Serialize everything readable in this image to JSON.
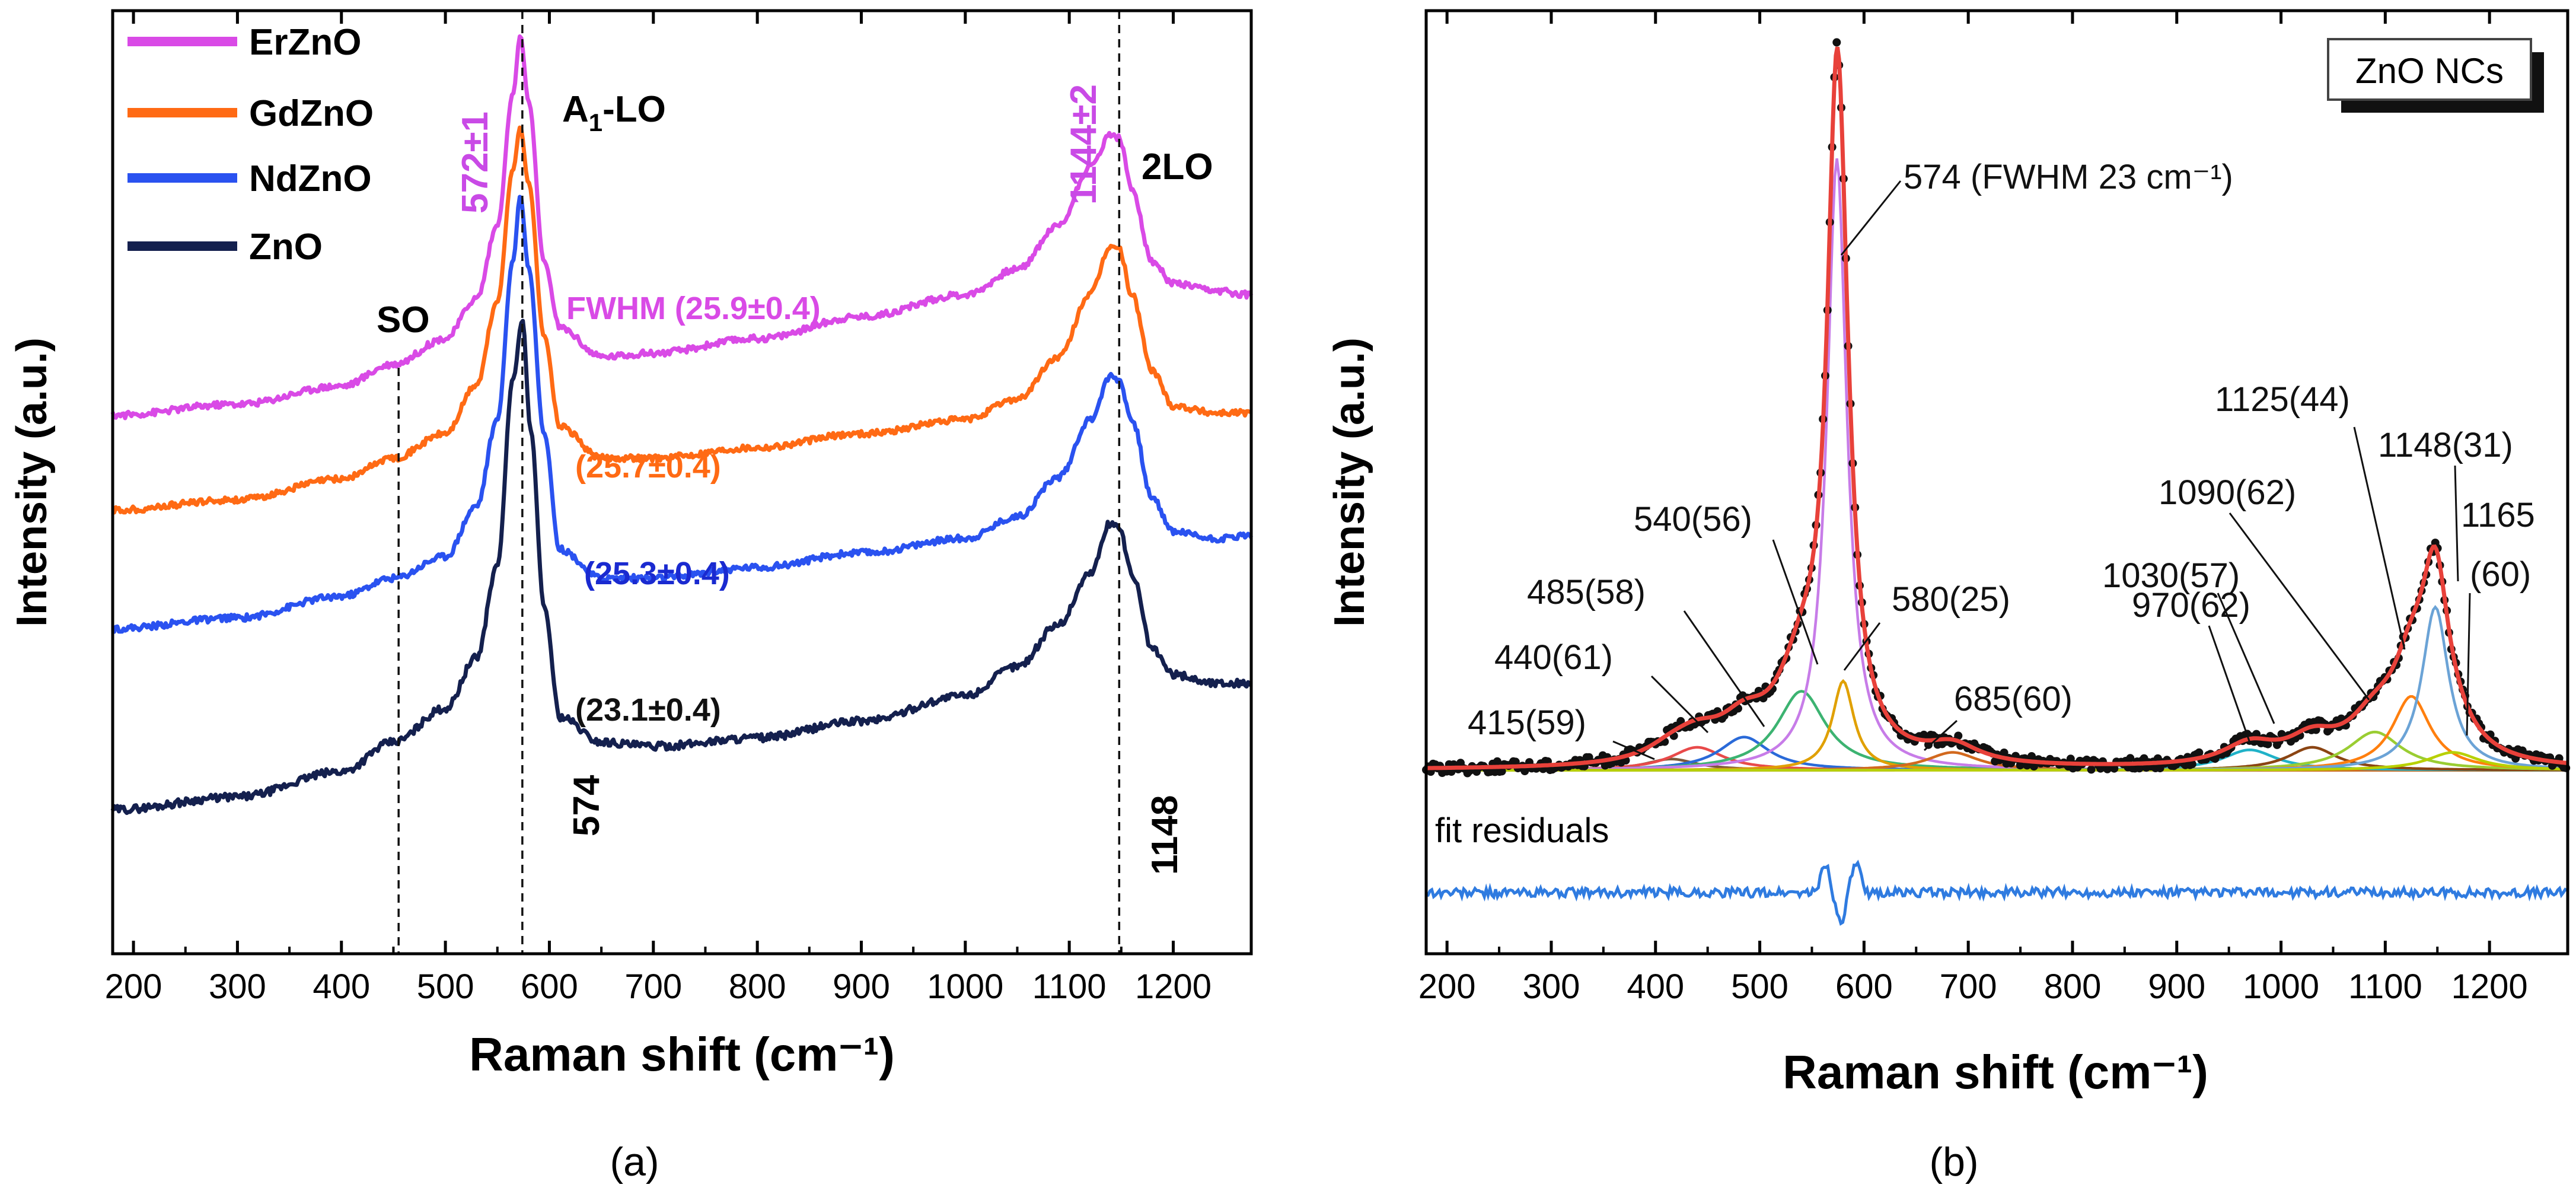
{
  "chart_data": [
    {
      "panel": "a",
      "type": "line",
      "xlabel": "Raman shift (cm⁻¹)",
      "ylabel": "Intensity (a.u.)",
      "xlim": [
        180,
        1275
      ],
      "ylim": [
        0,
        10
      ],
      "x_ticks": [
        200,
        300,
        400,
        500,
        600,
        700,
        800,
        900,
        1000,
        1100,
        1200
      ],
      "x_tick_labels": [
        "200",
        "300",
        "400",
        "500",
        "600",
        "700",
        "800",
        "900",
        "1000",
        "1100",
        "1200"
      ],
      "legend": {
        "position": "top-left",
        "entries": [
          {
            "name": "ErZnO",
            "color": "#d94ae6"
          },
          {
            "name": "GdZnO",
            "color": "#ff6a14"
          },
          {
            "name": "NdZnO",
            "color": "#2a52f0"
          },
          {
            "name": "ZnO",
            "color": "#14204e"
          }
        ]
      },
      "series": [
        {
          "name": "ErZnO",
          "color": "#d94ae6",
          "offset": 5.0,
          "points": [
            [
              180,
              0.4
            ],
            [
              300,
              0.55
            ],
            [
              400,
              0.8
            ],
            [
              450,
              1.1
            ],
            [
              500,
              1.45
            ],
            [
              530,
              2.0
            ],
            [
              550,
              3.0
            ],
            [
              565,
              4.8
            ],
            [
              572,
              5.6
            ],
            [
              580,
              4.7
            ],
            [
              595,
              2.5
            ],
            [
              610,
              1.6
            ],
            [
              650,
              1.2
            ],
            [
              700,
              1.25
            ],
            [
              800,
              1.45
            ],
            [
              900,
              1.75
            ],
            [
              1000,
              2.05
            ],
            [
              1050,
              2.4
            ],
            [
              1090,
              3.0
            ],
            [
              1120,
              3.8
            ],
            [
              1140,
              4.25
            ],
            [
              1148,
              4.2
            ],
            [
              1160,
              3.5
            ],
            [
              1180,
              2.5
            ],
            [
              1200,
              2.2
            ],
            [
              1240,
              2.1
            ],
            [
              1275,
              2.05
            ]
          ]
        },
        {
          "name": "GdZnO",
          "color": "#ff6a14",
          "offset": 3.55,
          "points": [
            [
              180,
              0.1
            ],
            [
              300,
              0.25
            ],
            [
              400,
              0.55
            ],
            [
              450,
              0.85
            ],
            [
              500,
              1.2
            ],
            [
              530,
              1.9
            ],
            [
              550,
              3.1
            ],
            [
              565,
              5.0
            ],
            [
              572,
              5.6
            ],
            [
              580,
              4.8
            ],
            [
              595,
              2.6
            ],
            [
              610,
              1.3
            ],
            [
              650,
              0.85
            ],
            [
              700,
              0.85
            ],
            [
              800,
              1.0
            ],
            [
              900,
              1.2
            ],
            [
              1000,
              1.4
            ],
            [
              1050,
              1.7
            ],
            [
              1090,
              2.3
            ],
            [
              1120,
              3.2
            ],
            [
              1140,
              3.9
            ],
            [
              1148,
              3.85
            ],
            [
              1160,
              3.2
            ],
            [
              1180,
              2.1
            ],
            [
              1200,
              1.6
            ],
            [
              1240,
              1.5
            ],
            [
              1275,
              1.5
            ]
          ]
        },
        {
          "name": "NdZnO",
          "color": "#2a52f0",
          "offset": 2.45,
          "points": [
            [
              180,
              0.1
            ],
            [
              300,
              0.25
            ],
            [
              400,
              0.55
            ],
            [
              450,
              0.8
            ],
            [
              500,
              1.1
            ],
            [
              530,
              1.8
            ],
            [
              550,
              3.0
            ],
            [
              565,
              5.2
            ],
            [
              572,
              6.1
            ],
            [
              580,
              5.1
            ],
            [
              595,
              2.8
            ],
            [
              610,
              1.2
            ],
            [
              650,
              0.8
            ],
            [
              700,
              0.8
            ],
            [
              800,
              0.95
            ],
            [
              900,
              1.15
            ],
            [
              1000,
              1.35
            ],
            [
              1050,
              1.65
            ],
            [
              1090,
              2.2
            ],
            [
              1120,
              3.0
            ],
            [
              1140,
              3.6
            ],
            [
              1148,
              3.55
            ],
            [
              1160,
              3.0
            ],
            [
              1180,
              1.9
            ],
            [
              1200,
              1.45
            ],
            [
              1240,
              1.35
            ],
            [
              1275,
              1.4
            ]
          ]
        },
        {
          "name": "ZnO",
          "color": "#14204e",
          "offset": 0.85,
          "points": [
            [
              180,
              0.1
            ],
            [
              300,
              0.25
            ],
            [
              400,
              0.55
            ],
            [
              450,
              0.9
            ],
            [
              500,
              1.3
            ],
            [
              530,
              1.9
            ],
            [
              550,
              3.0
            ],
            [
              565,
              5.2
            ],
            [
              574,
              5.9
            ],
            [
              582,
              4.6
            ],
            [
              595,
              2.5
            ],
            [
              610,
              1.2
            ],
            [
              650,
              0.9
            ],
            [
              700,
              0.85
            ],
            [
              800,
              0.95
            ],
            [
              900,
              1.15
            ],
            [
              1000,
              1.45
            ],
            [
              1050,
              1.8
            ],
            [
              1090,
              2.3
            ],
            [
              1120,
              2.9
            ],
            [
              1140,
              3.5
            ],
            [
              1148,
              3.45
            ],
            [
              1160,
              2.9
            ],
            [
              1180,
              2.0
            ],
            [
              1200,
              1.7
            ],
            [
              1240,
              1.6
            ],
            [
              1275,
              1.6
            ]
          ]
        }
      ],
      "vlines": [
        {
          "x": 455,
          "label": "SO"
        },
        {
          "x": 574,
          "label": "A₁-LO"
        },
        {
          "x": 1148,
          "label": "2LO"
        }
      ],
      "annotations": {
        "peak_572": "572±1",
        "peak_1144": "1144±2",
        "a1lo_main": "A",
        "a1lo_sub": "1",
        "a1lo_rest": "-LO",
        "twolo": "2LO",
        "so": "SO",
        "x574": "574",
        "x1148": "1148",
        "fwhm_er": "FWHM (25.9±0.4)",
        "fwhm_gd": "(25.7±0.4)",
        "fwhm_nd": "(25.3±0.4)",
        "fwhm_zno": "(23.1±0.4)"
      },
      "caption": "(a)"
    },
    {
      "panel": "b",
      "type": "line",
      "xlabel": "Raman shift (cm⁻¹)",
      "ylabel": "Intensity (a.u.)",
      "xlim": [
        180,
        1275
      ],
      "ylim": [
        -3.5,
        15
      ],
      "x_ticks": [
        200,
        300,
        400,
        500,
        600,
        700,
        800,
        900,
        1000,
        1100,
        1200
      ],
      "x_tick_labels": [
        "200",
        "300",
        "400",
        "500",
        "600",
        "700",
        "800",
        "900",
        "1000",
        "1100",
        "1200"
      ],
      "box_label": "ZnO NCs",
      "baseline": 0.1,
      "fit_color": "#e8413a",
      "data_color": "#111111",
      "residual_color": "#2f7be0",
      "residual_offset": -2.3,
      "residual_label": "fit residuals",
      "peaks": [
        {
          "center": 415,
          "fwhm": 59,
          "height": 0.22,
          "color": "#7a5a3a",
          "label": "415(59)"
        },
        {
          "center": 440,
          "fwhm": 61,
          "height": 0.45,
          "color": "#e84a4a",
          "label": "440(61)"
        },
        {
          "center": 485,
          "fwhm": 58,
          "height": 0.65,
          "color": "#2a6ad8",
          "label": "485(58)"
        },
        {
          "center": 540,
          "fwhm": 56,
          "height": 1.55,
          "color": "#3cb371",
          "label": "540(56)"
        },
        {
          "center": 574,
          "fwhm": 23,
          "height": 12.0,
          "color": "#c77ce8",
          "label": "574 (FWHM 23 cm⁻¹)"
        },
        {
          "center": 580,
          "fwhm": 25,
          "height": 1.75,
          "color": "#e0a000",
          "label": "580(25)"
        },
        {
          "center": 685,
          "fwhm": 60,
          "height": 0.35,
          "color": "#d2691e",
          "label": "685(60)"
        },
        {
          "center": 970,
          "fwhm": 62,
          "height": 0.4,
          "color": "#20b2c8",
          "label": "970(62)"
        },
        {
          "center": 1030,
          "fwhm": 57,
          "height": 0.45,
          "color": "#8b4513",
          "label": "1030(57)"
        },
        {
          "center": 1090,
          "fwhm": 62,
          "height": 0.75,
          "color": "#9acd32",
          "label": "1090(62)"
        },
        {
          "center": 1125,
          "fwhm": 44,
          "height": 1.45,
          "color": "#ff7f0e",
          "label": "1125(44)"
        },
        {
          "center": 1148,
          "fwhm": 31,
          "height": 3.2,
          "color": "#6ba3d6",
          "label": "1148(31)"
        },
        {
          "center": 1165,
          "fwhm": 60,
          "height": 0.35,
          "color": "#b8d000",
          "label": "1165"
        }
      ],
      "extra_labels": {
        "p1165_second": "(60)"
      },
      "caption": "(b)"
    }
  ]
}
